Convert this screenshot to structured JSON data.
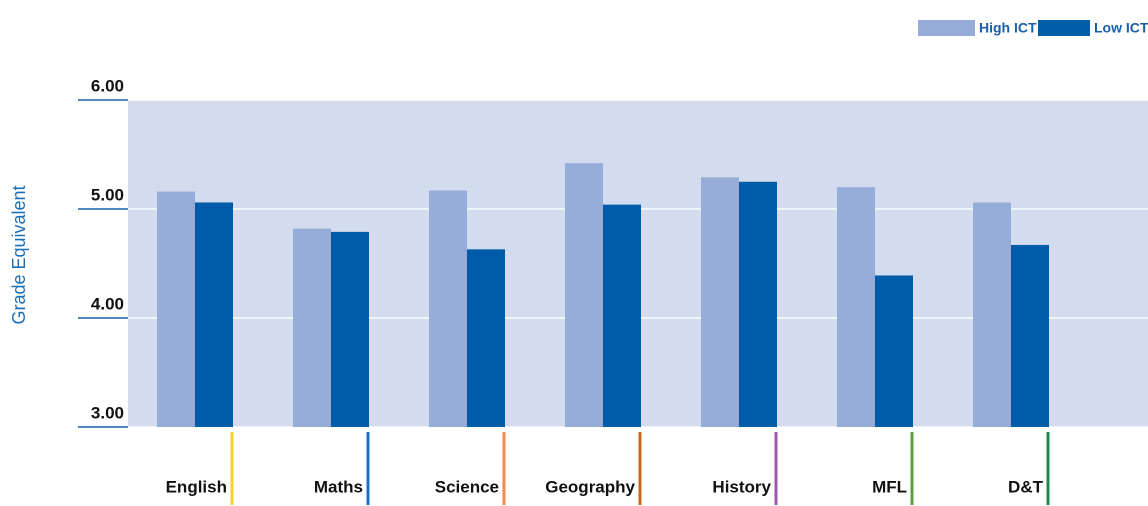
{
  "chart_data": {
    "type": "bar",
    "y_label": "Grade Equivalent",
    "categories": [
      "English",
      "Maths",
      "Science",
      "Geography",
      "History",
      "MFL",
      "D&T"
    ],
    "category_colors": [
      "#f5d327",
      "#1b6fc0",
      "#f08a4b",
      "#c8681e",
      "#9b59b6",
      "#5aa040",
      "#1f8a4a"
    ],
    "series": [
      {
        "name": "High ICT",
        "color": "#95acd8",
        "values": [
          5.16,
          4.82,
          5.17,
          5.42,
          5.29,
          5.2,
          5.06
        ]
      },
      {
        "name": "Low ICT",
        "color": "#005ca8",
        "values": [
          5.06,
          4.79,
          4.63,
          5.04,
          5.25,
          4.39,
          4.67
        ]
      }
    ],
    "ylim": [
      3,
      6
    ],
    "yticks": [
      {
        "value": 3,
        "label": "3.00"
      },
      {
        "value": 4,
        "label": "4.00"
      },
      {
        "value": 5,
        "label": "5.00"
      },
      {
        "value": 6,
        "label": "6.00"
      }
    ],
    "grid": true,
    "legend": "top-right",
    "plot_background": "#d3dcef"
  }
}
